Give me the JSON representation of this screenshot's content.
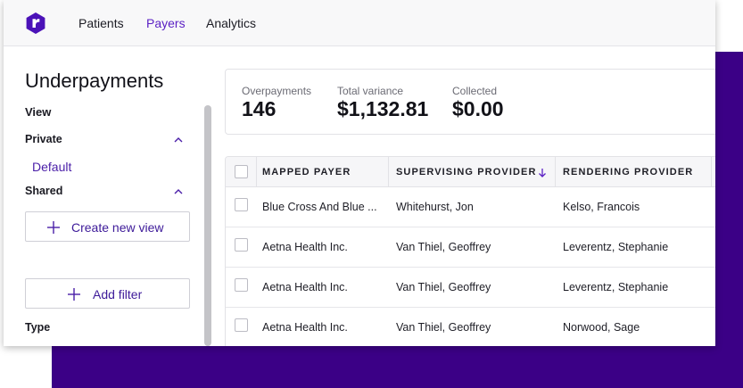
{
  "colors": {
    "accent": "#5a1fc4",
    "backdrop": "#3b0086",
    "logo": "#4b12b8"
  },
  "nav": {
    "logo_icon": "r-logo-icon",
    "items": [
      {
        "label": "Patients",
        "active": false
      },
      {
        "label": "Payers",
        "active": true
      },
      {
        "label": "Analytics",
        "active": false
      }
    ]
  },
  "sidebar": {
    "title": "Underpayments",
    "view_heading": "View",
    "private_heading": "Private",
    "private_views": [
      "Default"
    ],
    "shared_heading": "Shared",
    "create_view_label": "Create new view",
    "add_filter_label": "Add filter",
    "type_heading": "Type"
  },
  "stats": [
    {
      "label": "Overpayments",
      "value": "146"
    },
    {
      "label": "Total variance",
      "value": "$1,132.81"
    },
    {
      "label": "Collected",
      "value": "$0.00"
    }
  ],
  "table": {
    "columns": [
      "MAPPED PAYER",
      "SUPERVISING PROVIDER",
      "RENDERING PROVIDER"
    ],
    "sorted_column": "SUPERVISING PROVIDER",
    "sort_direction": "descending",
    "rows": [
      [
        "Blue Cross And Blue ...",
        "Whitehurst, Jon",
        "Kelso, Francois"
      ],
      [
        "Aetna Health Inc.",
        "Van Thiel, Geoffrey",
        "Leverentz, Stephanie"
      ],
      [
        "Aetna Health Inc.",
        "Van Thiel, Geoffrey",
        "Leverentz, Stephanie"
      ],
      [
        "Aetna Health Inc.",
        "Van Thiel, Geoffrey",
        "Norwood, Sage"
      ]
    ]
  }
}
